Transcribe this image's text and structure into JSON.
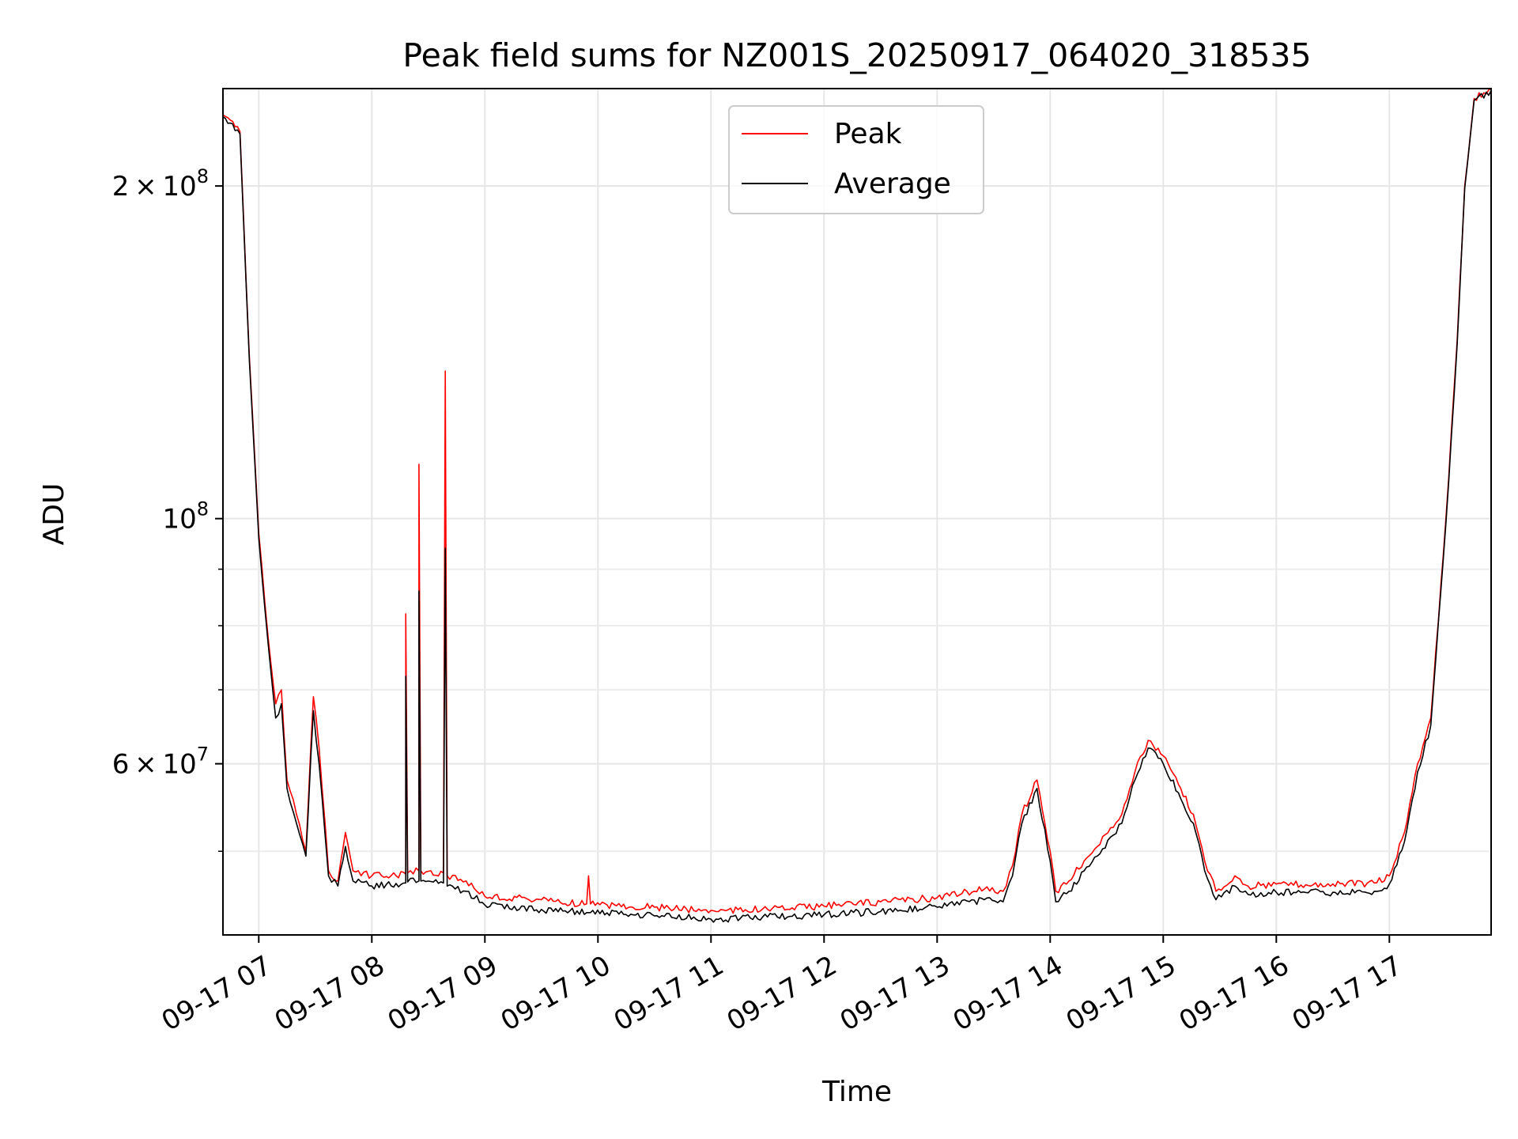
{
  "chart_data": {
    "type": "line",
    "title": "Peak field sums for NZ001S_20250917_064020_318535",
    "xlabel": "Time",
    "ylabel": "ADU",
    "y_scale": "log",
    "ylim": [
      42000000,
      245000000
    ],
    "xlim": [
      "2025-09-17 06:41",
      "2025-09-17 17:54"
    ],
    "grid": true,
    "legend_position": "top-center",
    "x_ticks": [
      {
        "value": "2025-09-17 07:00",
        "label": "09-17 07"
      },
      {
        "value": "2025-09-17 08:00",
        "label": "09-17 08"
      },
      {
        "value": "2025-09-17 09:00",
        "label": "09-17 09"
      },
      {
        "value": "2025-09-17 10:00",
        "label": "09-17 10"
      },
      {
        "value": "2025-09-17 11:00",
        "label": "09-17 11"
      },
      {
        "value": "2025-09-17 12:00",
        "label": "09-17 12"
      },
      {
        "value": "2025-09-17 13:00",
        "label": "09-17 13"
      },
      {
        "value": "2025-09-17 14:00",
        "label": "09-17 14"
      },
      {
        "value": "2025-09-17 15:00",
        "label": "09-17 15"
      },
      {
        "value": "2025-09-17 16:00",
        "label": "09-17 16"
      },
      {
        "value": "2025-09-17 17:00",
        "label": "09-17 17"
      }
    ],
    "y_ticks": [
      {
        "value": 60000000,
        "mantissa": "6",
        "exponent": "7"
      },
      {
        "value": 100000000,
        "mantissa": "",
        "exponent": "8"
      },
      {
        "value": 200000000,
        "mantissa": "2",
        "exponent": "8"
      }
    ],
    "y_minor_ticks": [
      50000000,
      70000000,
      80000000,
      90000000,
      300000000
    ],
    "series": [
      {
        "name": "Peak",
        "color": "#ff0000",
        "points": [
          [
            "2025-09-17 06:41",
            232000000
          ],
          [
            "2025-09-17 06:50",
            224000000
          ],
          [
            "2025-09-17 06:55",
            140000000
          ],
          [
            "2025-09-17 07:00",
            97000000
          ],
          [
            "2025-09-17 07:05",
            78000000
          ],
          [
            "2025-09-17 07:09",
            68000000
          ],
          [
            "2025-09-17 07:12",
            70000000
          ],
          [
            "2025-09-17 07:15",
            58000000
          ],
          [
            "2025-09-17 07:20",
            54000000
          ],
          [
            "2025-09-17 07:25",
            50000000
          ],
          [
            "2025-09-17 07:29",
            69000000
          ],
          [
            "2025-09-17 07:32",
            62000000
          ],
          [
            "2025-09-17 07:37",
            48000000
          ],
          [
            "2025-09-17 07:42",
            47000000
          ],
          [
            "2025-09-17 07:46",
            52000000
          ],
          [
            "2025-09-17 07:50",
            48000000
          ],
          [
            "2025-09-17 08:00",
            47500000
          ],
          [
            "2025-09-17 08:18",
            47700000
          ],
          [
            "2025-09-17 08:18",
            82000000
          ],
          [
            "2025-09-17 08:19",
            47800000
          ],
          [
            "2025-09-17 08:25",
            48000000
          ],
          [
            "2025-09-17 08:25",
            112000000
          ],
          [
            "2025-09-17 08:26",
            48000000
          ],
          [
            "2025-09-17 08:38",
            47800000
          ],
          [
            "2025-09-17 08:39",
            136000000
          ],
          [
            "2025-09-17 08:40",
            47500000
          ],
          [
            "2025-09-17 08:50",
            47000000
          ],
          [
            "2025-09-17 09:00",
            45500000
          ],
          [
            "2025-09-17 09:30",
            45200000
          ],
          [
            "2025-09-17 09:54",
            44800000
          ],
          [
            "2025-09-17 09:55",
            47500000
          ],
          [
            "2025-09-17 09:56",
            44800000
          ],
          [
            "2025-09-17 10:30",
            44500000
          ],
          [
            "2025-09-17 11:00",
            44200000
          ],
          [
            "2025-09-17 11:30",
            44300000
          ],
          [
            "2025-09-17 12:00",
            44600000
          ],
          [
            "2025-09-17 12:30",
            45000000
          ],
          [
            "2025-09-17 13:00",
            45400000
          ],
          [
            "2025-09-17 13:25",
            46200000
          ],
          [
            "2025-09-17 13:35",
            46000000
          ],
          [
            "2025-09-17 13:40",
            48500000
          ],
          [
            "2025-09-17 13:45",
            54000000
          ],
          [
            "2025-09-17 13:53",
            58000000
          ],
          [
            "2025-09-17 14:00",
            50000000
          ],
          [
            "2025-09-17 14:03",
            46000000
          ],
          [
            "2025-09-17 14:10",
            47000000
          ],
          [
            "2025-09-17 14:18",
            49000000
          ],
          [
            "2025-09-17 14:25",
            50500000
          ],
          [
            "2025-09-17 14:32",
            52500000
          ],
          [
            "2025-09-17 14:38",
            54000000
          ],
          [
            "2025-09-17 14:45",
            59000000
          ],
          [
            "2025-09-17 14:52",
            63000000
          ],
          [
            "2025-09-17 15:00",
            61000000
          ],
          [
            "2025-09-17 15:08",
            57500000
          ],
          [
            "2025-09-17 15:16",
            54000000
          ],
          [
            "2025-09-17 15:22",
            49000000
          ],
          [
            "2025-09-17 15:28",
            46000000
          ],
          [
            "2025-09-17 15:38",
            47500000
          ],
          [
            "2025-09-17 15:45",
            46500000
          ],
          [
            "2025-09-17 16:00",
            46700000
          ],
          [
            "2025-09-17 16:30",
            46700000
          ],
          [
            "2025-09-17 16:52",
            46800000
          ],
          [
            "2025-09-17 17:00",
            47500000
          ],
          [
            "2025-09-17 17:08",
            52000000
          ],
          [
            "2025-09-17 17:15",
            60000000
          ],
          [
            "2025-09-17 17:22",
            66000000
          ],
          [
            "2025-09-17 17:30",
            100000000
          ],
          [
            "2025-09-17 17:36",
            145000000
          ],
          [
            "2025-09-17 17:40",
            200000000
          ],
          [
            "2025-09-17 17:45",
            240000000
          ],
          [
            "2025-09-17 17:54",
            245000000
          ]
        ]
      },
      {
        "name": "Average",
        "color": "#000000",
        "points": [
          [
            "2025-09-17 06:41",
            231000000
          ],
          [
            "2025-09-17 06:50",
            223000000
          ],
          [
            "2025-09-17 06:55",
            139000000
          ],
          [
            "2025-09-17 07:00",
            96000000
          ],
          [
            "2025-09-17 07:05",
            77000000
          ],
          [
            "2025-09-17 07:09",
            66000000
          ],
          [
            "2025-09-17 07:12",
            68000000
          ],
          [
            "2025-09-17 07:15",
            57000000
          ],
          [
            "2025-09-17 07:20",
            53000000
          ],
          [
            "2025-09-17 07:25",
            49500000
          ],
          [
            "2025-09-17 07:29",
            67000000
          ],
          [
            "2025-09-17 07:32",
            60000000
          ],
          [
            "2025-09-17 07:37",
            47500000
          ],
          [
            "2025-09-17 07:42",
            46500000
          ],
          [
            "2025-09-17 07:46",
            50500000
          ],
          [
            "2025-09-17 07:50",
            47000000
          ],
          [
            "2025-09-17 08:00",
            46500000
          ],
          [
            "2025-09-17 08:18",
            46800000
          ],
          [
            "2025-09-17 08:18",
            72000000
          ],
          [
            "2025-09-17 08:19",
            46900000
          ],
          [
            "2025-09-17 08:25",
            47000000
          ],
          [
            "2025-09-17 08:25",
            86000000
          ],
          [
            "2025-09-17 08:26",
            47000000
          ],
          [
            "2025-09-17 08:38",
            46800000
          ],
          [
            "2025-09-17 08:39",
            94000000
          ],
          [
            "2025-09-17 08:40",
            46500000
          ],
          [
            "2025-09-17 08:50",
            46000000
          ],
          [
            "2025-09-17 09:00",
            44700000
          ],
          [
            "2025-09-17 09:30",
            44300000
          ],
          [
            "2025-09-17 09:54",
            44000000
          ],
          [
            "2025-09-17 09:56",
            44000000
          ],
          [
            "2025-09-17 10:30",
            43700000
          ],
          [
            "2025-09-17 11:00",
            43400000
          ],
          [
            "2025-09-17 11:30",
            43600000
          ],
          [
            "2025-09-17 12:00",
            43800000
          ],
          [
            "2025-09-17 12:30",
            44100000
          ],
          [
            "2025-09-17 13:00",
            44500000
          ],
          [
            "2025-09-17 13:25",
            45200000
          ],
          [
            "2025-09-17 13:35",
            45000000
          ],
          [
            "2025-09-17 13:40",
            47500000
          ],
          [
            "2025-09-17 13:45",
            53000000
          ],
          [
            "2025-09-17 13:53",
            57000000
          ],
          [
            "2025-09-17 14:00",
            49000000
          ],
          [
            "2025-09-17 14:03",
            45000000
          ],
          [
            "2025-09-17 14:10",
            46000000
          ],
          [
            "2025-09-17 14:18",
            48000000
          ],
          [
            "2025-09-17 14:25",
            49500000
          ],
          [
            "2025-09-17 14:32",
            51500000
          ],
          [
            "2025-09-17 14:38",
            53000000
          ],
          [
            "2025-09-17 14:45",
            58000000
          ],
          [
            "2025-09-17 14:52",
            62000000
          ],
          [
            "2025-09-17 15:00",
            60000000
          ],
          [
            "2025-09-17 15:08",
            56500000
          ],
          [
            "2025-09-17 15:16",
            53000000
          ],
          [
            "2025-09-17 15:22",
            48000000
          ],
          [
            "2025-09-17 15:28",
            45200000
          ],
          [
            "2025-09-17 15:38",
            46500000
          ],
          [
            "2025-09-17 15:45",
            45700000
          ],
          [
            "2025-09-17 16:00",
            45900000
          ],
          [
            "2025-09-17 16:30",
            45900000
          ],
          [
            "2025-09-17 16:52",
            46000000
          ],
          [
            "2025-09-17 17:00",
            46700000
          ],
          [
            "2025-09-17 17:08",
            51000000
          ],
          [
            "2025-09-17 17:15",
            59000000
          ],
          [
            "2025-09-17 17:22",
            65000000
          ],
          [
            "2025-09-17 17:30",
            99000000
          ],
          [
            "2025-09-17 17:36",
            144000000
          ],
          [
            "2025-09-17 17:40",
            199000000
          ],
          [
            "2025-09-17 17:45",
            239000000
          ],
          [
            "2025-09-17 17:54",
            244000000
          ]
        ]
      }
    ]
  }
}
